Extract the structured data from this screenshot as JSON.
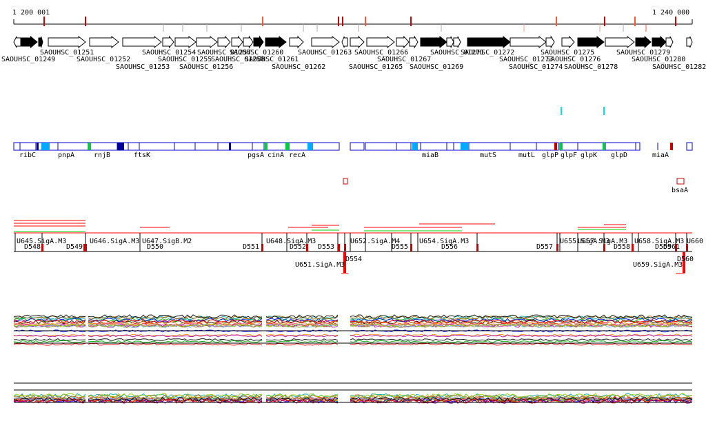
{
  "ruler": {
    "start_label": "1 200 001",
    "end_label": "1 240 000"
  },
  "locus_tags": [
    "SAOUHSC_01249",
    "SAOUHSC_01251",
    "SAOUHSC_01252",
    "SAOUHSC_01253",
    "SAOUHSC_01254",
    "SAOUHSC_01255",
    "SAOUHSC_01256",
    "SAOUHSC_01257",
    "SAOUHSC_01258",
    "SAOUHSC_01260",
    "SAOUHSC_01261",
    "SAOUHSC_01262",
    "SAOUHSC_01263",
    "SAOUHSC_01265",
    "SAOUHSC_01266",
    "SAOUHSC_01267",
    "SAOUHSC_01269",
    "SAOUHSC_01271",
    "SAOUHSC_01272",
    "SAOUHSC_01273",
    "SAOUHSC_01274",
    "SAOUHSC_01275",
    "SAOUHSC_01276",
    "SAOUHSC_01278",
    "SAOUHSC_01279",
    "SAOUHSC_01280",
    "SAOUHSC_01282"
  ],
  "gene_names": [
    "ribC",
    "pnpA",
    "rnjB",
    "ftsK",
    "pgsA",
    "cinA",
    "recA",
    "miaB",
    "mutS",
    "mutL",
    "glpP",
    "glpF",
    "glpK",
    "glpD",
    "miaA",
    "bsaA"
  ],
  "segments": [
    "U645.SigA.M3",
    "D548",
    "D549",
    "U646.SigA.M3",
    "U647.SigB.M2",
    "D550",
    "D551",
    "U648.SigA.M3",
    "D552",
    "D553",
    "U651.SigA.M3",
    "D554",
    "U652.SigA.M4",
    "D555",
    "U654.SigA.M3",
    "D556",
    "D557",
    "U655.SigA.M3",
    "U657.SigA.M3",
    "D558",
    "U658.SigA.M3",
    "D559",
    "U659.SigA.M3",
    "D560",
    "U660",
    "D561"
  ],
  "colors": {
    "gene_outline": "#000000",
    "gene_fill_dark": "#000000",
    "gene_fill_light": "#ffffff",
    "annotation_box": "#0000cc",
    "annotation_dark": "#000099",
    "annotation_cyan": "#00aaff",
    "annotation_green": "#00cc44",
    "marker_red": "#cc0000",
    "marker_pink": "#ff7766",
    "segment_line": "#ff0000",
    "segment_green": "#00cc00",
    "cyan_tick": "#00e5e5"
  },
  "series_colors": [
    "#000000",
    "#ff0000",
    "#00aa00",
    "#0000ff",
    "#ff8800",
    "#aa00aa",
    "#00aaaa",
    "#888800",
    "#ff66aa",
    "#66aaff",
    "#aa6600",
    "#99cc00"
  ]
}
